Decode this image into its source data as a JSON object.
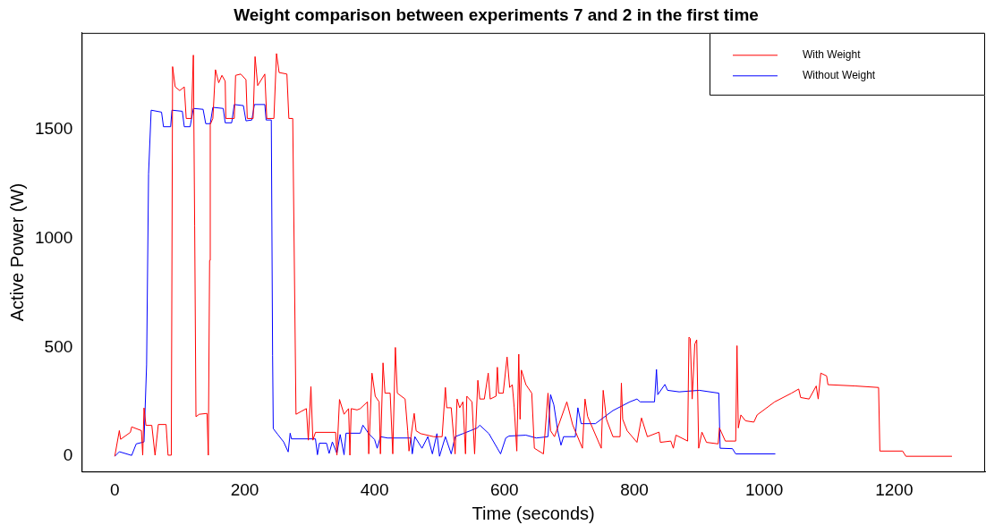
{
  "chart_data": {
    "type": "line",
    "title": "Weight comparison between experiments 7 and 2 in the first time",
    "xlabel": "Time (seconds)",
    "ylabel": "Active Power (W)",
    "xlim": [
      -51,
      1340
    ],
    "xticks": [
      0,
      200,
      400,
      600,
      800,
      1000,
      1200
    ],
    "ylim": [
      -70,
      1945
    ],
    "yticks": [
      0,
      500,
      1000,
      1500
    ],
    "grid": false,
    "legend": "top right",
    "marker": "none",
    "line_style": "solid",
    "series": [
      {
        "name": "With Weight",
        "color": "#ff0000",
        "x": [
          0,
          7,
          9,
          24,
          26,
          41,
          43,
          45,
          48,
          57,
          62,
          67,
          79,
          82,
          87,
          89,
          93,
          100,
          107,
          110,
          118,
          121,
          123,
          125,
          130,
          142,
          144,
          146,
          147,
          151,
          155,
          160,
          165,
          170,
          171,
          184,
          186,
          194,
          202,
          204,
          213,
          216,
          220,
          231,
          234,
          245,
          249,
          253,
          265,
          268,
          274,
          279,
          287,
          295,
          298,
          302,
          305,
          309,
          340,
          342,
          346,
          353,
          360,
          362,
          364,
          373,
          378,
          389,
          391,
          396,
          401,
          407,
          409,
          413,
          416,
          424,
          428,
          432,
          435,
          447,
          451,
          453,
          461,
          464,
          471,
          491,
          504,
          509,
          511,
          518,
          524,
          527,
          531,
          536,
          540,
          542,
          550,
          554,
          559,
          562,
          569,
          575,
          578,
          587,
          589,
          591,
          598,
          604,
          608,
          612,
          615,
          619,
          622,
          624,
          626,
          633,
          642,
          646,
          660,
          667,
          671,
          677,
          696,
          705,
          720,
          724,
          728,
          749,
          752,
          757,
          767,
          778,
          780,
          782,
          789,
          804,
          811,
          820,
          838,
          840,
          856,
          860,
          864,
          882,
          884,
          886,
          889,
          893,
          896,
          899,
          904,
          911,
          929,
          931,
          940,
          956,
          958,
          960,
          964,
          971,
          984,
          989,
          1016,
          1042,
          1053,
          1056,
          1069,
          1080,
          1083,
          1087,
          1096,
          1098,
          1140,
          1176,
          1178,
          1213,
          1218,
          1289
        ],
        "values": [
          0,
          118,
          78,
          110,
          135,
          118,
          5,
          222,
          142,
          142,
          5,
          146,
          146,
          5,
          5,
          1790,
          1697,
          1680,
          1697,
          1552,
          1552,
          1843,
          1060,
          182,
          193,
          197,
          5,
          900,
          1524,
          1552,
          1776,
          1716,
          1750,
          1723,
          1552,
          1552,
          1750,
          1756,
          1730,
          1552,
          1552,
          1836,
          1703,
          1756,
          1552,
          1552,
          1850,
          1763,
          1756,
          1552,
          1552,
          193,
          206,
          219,
          74,
          320,
          74,
          110,
          110,
          5,
          261,
          193,
          219,
          5,
          219,
          213,
          219,
          250,
          11,
          382,
          276,
          250,
          11,
          429,
          290,
          290,
          11,
          500,
          290,
          263,
          117,
          24,
          197,
          117,
          104,
          90,
          90,
          316,
          223,
          223,
          11,
          263,
          223,
          250,
          11,
          276,
          250,
          11,
          349,
          263,
          263,
          382,
          263,
          276,
          409,
          290,
          290,
          456,
          316,
          329,
          223,
          24,
          469,
          170,
          396,
          329,
          290,
          37,
          11,
          290,
          117,
          90,
          250,
          144,
          37,
          263,
          183,
          37,
          303,
          170,
          90,
          90,
          336,
          170,
          117,
          64,
          176,
          90,
          111,
          64,
          70,
          37,
          97,
          70,
          547,
          541,
          263,
          515,
          535,
          37,
          111,
          64,
          57,
          130,
          70,
          70,
          508,
          130,
          190,
          163,
          157,
          190,
          250,
          290,
          309,
          270,
          263,
          323,
          263,
          382,
          369,
          329,
          323,
          316,
          24,
          24,
          0,
          0
        ]
      },
      {
        "name": "Without Weight",
        "color": "#0000ff",
        "x": [
          0,
          7,
          26,
          33,
          45,
          49,
          52,
          56,
          72,
          75,
          86,
          88,
          104,
          107,
          116,
          121,
          136,
          140,
          147,
          151,
          167,
          170,
          180,
          184,
          198,
          202,
          211,
          215,
          231,
          233,
          241,
          243,
          244,
          251,
          260,
          267,
          270,
          272,
          309,
          312,
          315,
          326,
          330,
          335,
          342,
          347,
          353,
          356,
          378,
          382,
          391,
          400,
          404,
          409,
          420,
          456,
          458,
          462,
          473,
          482,
          489,
          496,
          500,
          509,
          518,
          524,
          536,
          547,
          558,
          562,
          576,
          589,
          594,
          602,
          607,
          633,
          649,
          667,
          671,
          676,
          682,
          687,
          691,
          709,
          713,
          718,
          740,
          767,
          793,
          804,
          809,
          831,
          834,
          836,
          847,
          851,
          869,
          900,
          930,
          932,
          951,
          956,
          1017
        ],
        "values": [
          0,
          21,
          4,
          57,
          66,
          420,
          1297,
          1590,
          1581,
          1514,
          1514,
          1590,
          1585,
          1514,
          1514,
          1598,
          1594,
          1528,
          1528,
          1603,
          1598,
          1532,
          1532,
          1616,
          1611,
          1541,
          1545,
          1616,
          1616,
          1545,
          1545,
          462,
          127,
          100,
          66,
          20,
          106,
          80,
          80,
          7,
          60,
          60,
          13,
          66,
          13,
          100,
          7,
          106,
          106,
          143,
          104,
          77,
          37,
          90,
          84,
          84,
          11,
          90,
          37,
          90,
          11,
          104,
          0,
          90,
          11,
          90,
          104,
          117,
          130,
          143,
          104,
          37,
          11,
          84,
          93,
          97,
          84,
          90,
          283,
          236,
          117,
          51,
          90,
          90,
          223,
          150,
          150,
          210,
          250,
          263,
          250,
          250,
          399,
          283,
          330,
          303,
          296,
          303,
          290,
          37,
          35,
          11,
          11
        ]
      }
    ]
  }
}
